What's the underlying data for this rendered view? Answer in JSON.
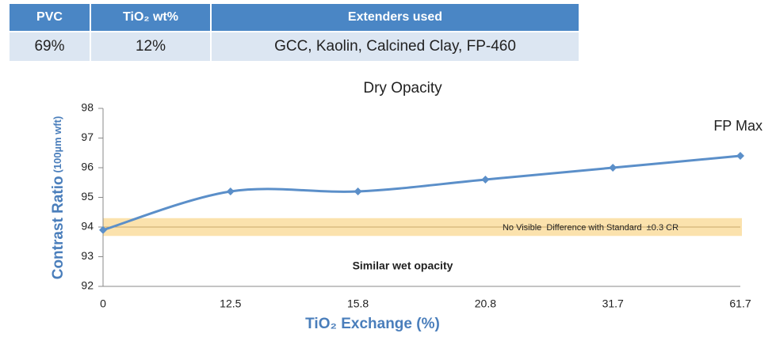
{
  "table": {
    "header": [
      "PVC",
      "TiO₂ wt%",
      "Extenders used"
    ],
    "rows": [
      [
        "69%",
        "12%",
        "GCC, Kaolin, Calcined Clay, FP-460"
      ]
    ]
  },
  "chart_data": {
    "type": "line",
    "title": "Dry Opacity",
    "x_label": "TiO₂ Exchange (%)",
    "y_label": "Contrast Ratio",
    "y_label_unit": "(100µm wft)",
    "categories": [
      "0",
      "12.5",
      "15.8",
      "20.8",
      "31.7",
      "61.7"
    ],
    "series": [
      {
        "name": "Dry Opacity",
        "color": "#5b8fc9",
        "values": [
          93.9,
          95.2,
          95.2,
          95.6,
          96.0,
          96.4
        ]
      }
    ],
    "ylim": [
      92,
      98
    ],
    "yticks": [
      92,
      93,
      94,
      95,
      96,
      97,
      98
    ],
    "reference_line": 94,
    "reference_band": [
      93.7,
      94.3
    ],
    "band_color": "#fbe2ad",
    "annotations": [
      "FP Max",
      "No Visible  Difference with Standard  ±0.3 CR",
      "Similar wet opacity"
    ]
  }
}
